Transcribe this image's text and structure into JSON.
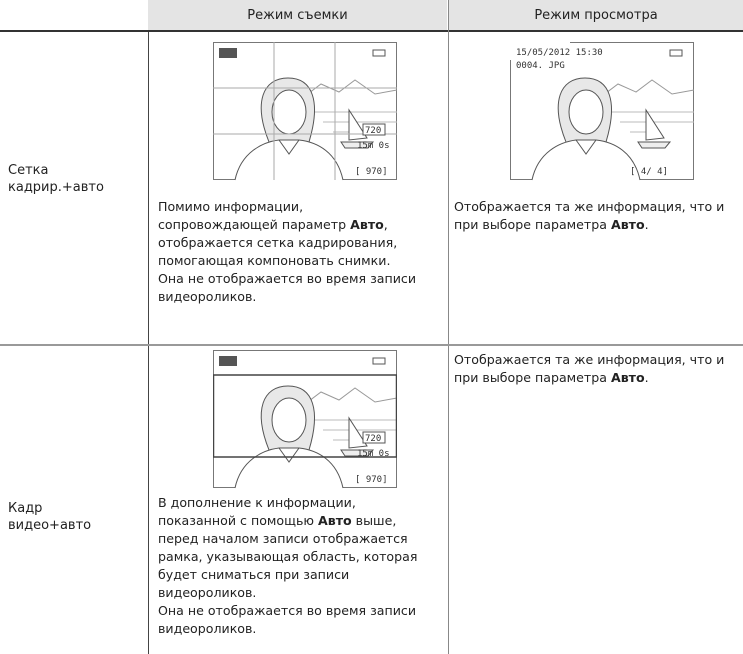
{
  "table": {
    "headers": [
      "Режим съемки",
      "Режим просмотра"
    ],
    "rows": [
      {
        "label": "Сетка кадрир.+авто",
        "shooting": {
          "screen": {
            "size": "720",
            "time": "15m 0s",
            "count": "[ 970]"
          },
          "text": [
            "Помимо информации, сопровождающей параметр ",
            "Авто",
            ", отображается сетка кадрирования, помогающая компоновать снимки. Она не отображается во время записи видеороликов."
          ]
        },
        "playback": {
          "screen": {
            "datetime": "15/05/2012 15:30",
            "file": "0004. JPG",
            "frame": "[ 4/ 4]"
          },
          "text": [
            "Отображается та же информация, что и при выборе параметра ",
            "Авто",
            "."
          ]
        }
      },
      {
        "label": "Кадр видео+авто",
        "shooting": {
          "screen": {
            "size": "720",
            "time": "15m 0s",
            "count": "[ 970]"
          },
          "text": [
            "В дополнение к информации, показанной с помощью ",
            "Авто",
            " выше, перед началом записи отображается рамка, указывающая область, которая будет сниматься при записи видеороликов."
          ],
          "note": "Она не отображается во время записи видеороликов."
        },
        "playback": {
          "text": [
            "Отображается та же информация, что и при выборе параметра ",
            "Авто",
            "."
          ]
        }
      }
    ]
  }
}
